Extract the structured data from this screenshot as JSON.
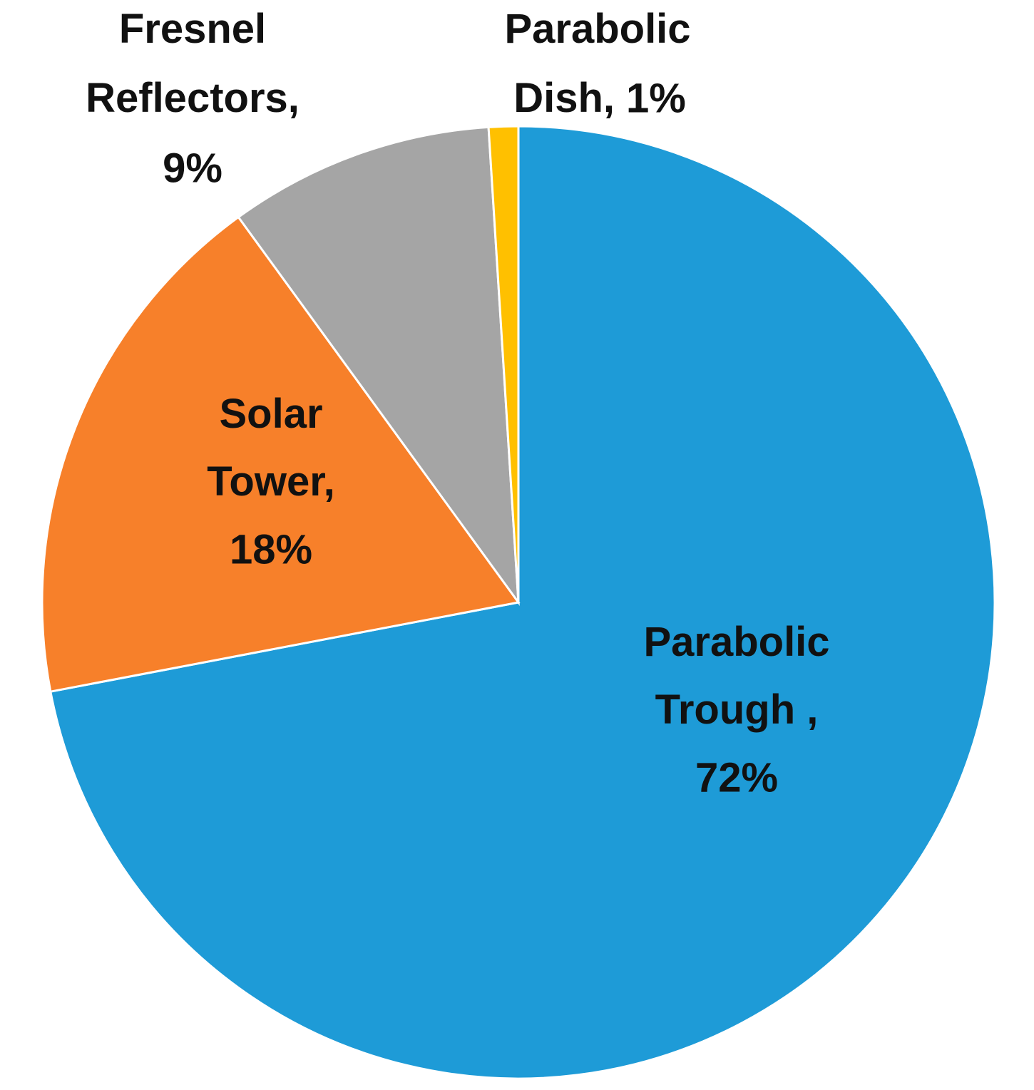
{
  "chart_data": {
    "type": "pie",
    "categories": [
      "Parabolic Trough ,",
      "Solar Tower,",
      "Fresnel Reflectors,",
      "Parabolic Dish,"
    ],
    "values": [
      72,
      18,
      9,
      1
    ],
    "value_labels": [
      "72%",
      "18%",
      "9%",
      "1%"
    ],
    "colors": [
      "#1e9bd7",
      "#f7802a",
      "#a5a5a5",
      "#ffc000"
    ]
  }
}
